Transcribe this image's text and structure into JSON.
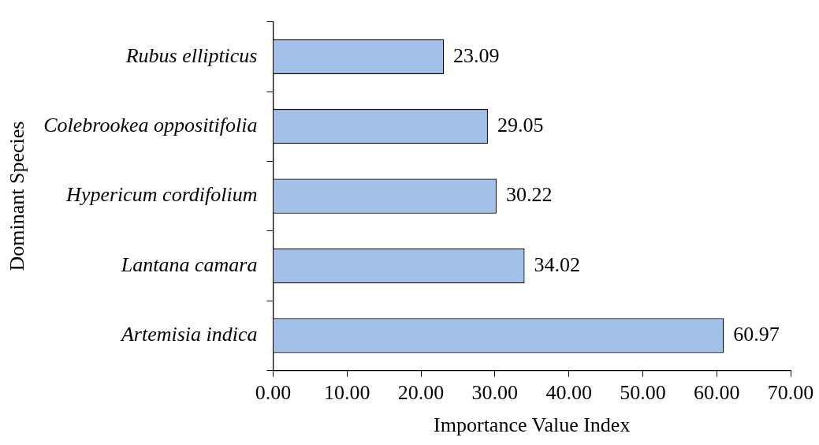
{
  "chart_data": {
    "type": "bar",
    "orientation": "horizontal",
    "xlabel": "Importance Value Index",
    "ylabel": "Dominant Species",
    "categories": [
      "Rubus ellipticus",
      "Colebrookea oppositifolia",
      "Hypericum cordifolium",
      "Lantana camara",
      "Artemisia indica"
    ],
    "values": [
      23.09,
      29.05,
      30.22,
      34.02,
      60.97
    ],
    "color": "#a3c1e8",
    "xlim": [
      0,
      70
    ],
    "xticks": [
      {
        "value": 0,
        "label": "0.00"
      },
      {
        "value": 10,
        "label": "10.00"
      },
      {
        "value": 20,
        "label": "20.00"
      },
      {
        "value": 30,
        "label": "30.00"
      },
      {
        "value": 40,
        "label": "40.00"
      },
      {
        "value": 50,
        "label": "50.00"
      },
      {
        "value": 60,
        "label": "60.00"
      },
      {
        "value": 70,
        "label": "70.00"
      }
    ],
    "data_labels": true,
    "grid": false,
    "legend": false
  }
}
